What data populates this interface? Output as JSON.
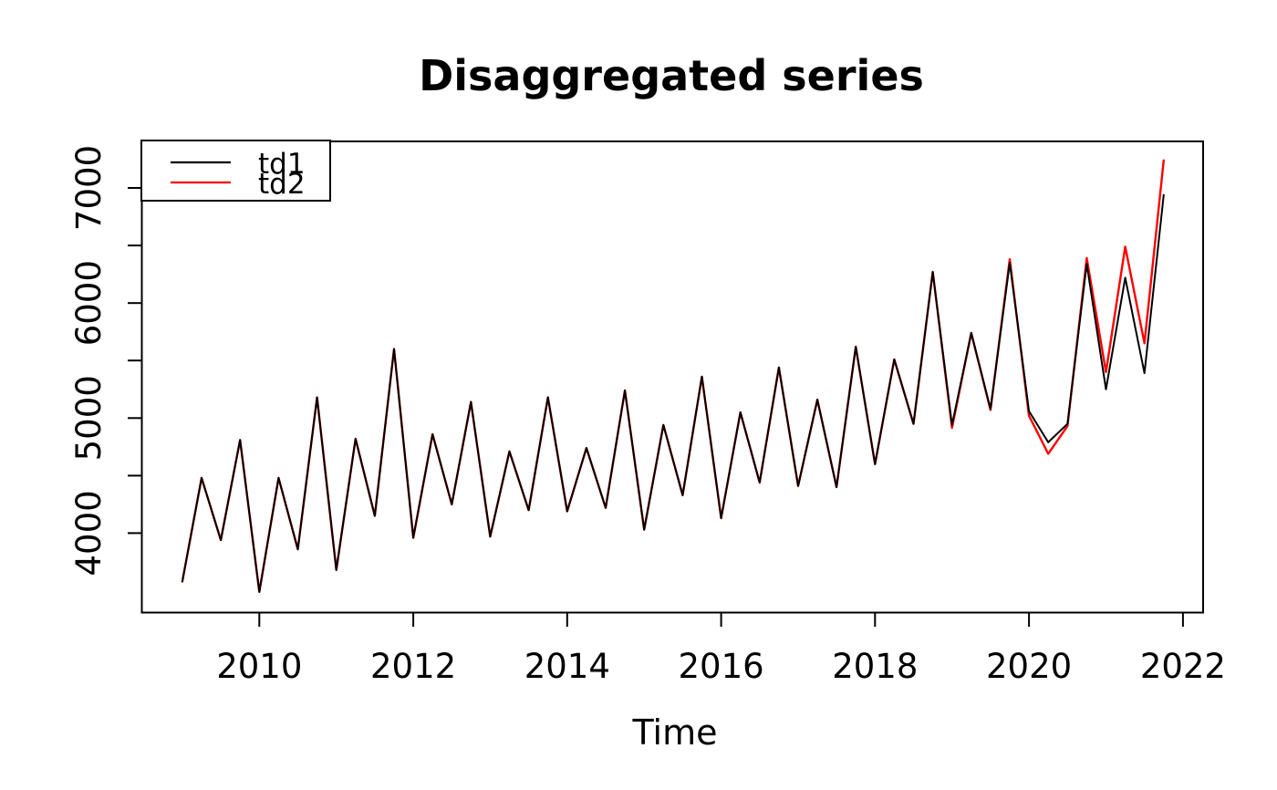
{
  "chart": {
    "title": "Disaggregated series",
    "x_axis_title": "Time"
  },
  "chart_data": {
    "type": "line",
    "title": "Disaggregated series",
    "xlabel": "Time",
    "ylabel": "",
    "x_start": 2009.0,
    "x_step": 0.25,
    "frequency": "quarterly",
    "x_ticks": [
      2010,
      2012,
      2014,
      2016,
      2018,
      2020,
      2022
    ],
    "y_ticks": [
      4000,
      4500,
      5000,
      5500,
      6000,
      6500,
      7000
    ],
    "y_tick_labels": [
      4000,
      5000,
      6000,
      7000
    ],
    "xlim": [
      2008.5,
      2022.25
    ],
    "ylim": [
      3340,
      7400
    ],
    "grid": false,
    "legend_position": "topleft",
    "background": "#ffffff",
    "axis_color": "#000000",
    "series": [
      {
        "name": "td1",
        "color": "#000000",
        "values": [
          3580,
          4480,
          3940,
          4810,
          3490,
          4480,
          3860,
          5180,
          3680,
          4820,
          4150,
          5600,
          3960,
          4860,
          4250,
          5140,
          3970,
          4710,
          4200,
          5180,
          4190,
          4740,
          4220,
          5240,
          4030,
          4940,
          4330,
          5360,
          4130,
          5050,
          4440,
          5440,
          4410,
          5160,
          4400,
          5620,
          4600,
          5510,
          4950,
          6270,
          4940,
          5740,
          5080,
          6350,
          5060,
          4790,
          4950,
          6340,
          5250,
          6220,
          5390,
          6940
        ]
      },
      {
        "name": "td2",
        "color": "#FF0000",
        "values": [
          3580,
          4480,
          3940,
          4810,
          3490,
          4480,
          3860,
          5180,
          3680,
          4820,
          4150,
          5600,
          3960,
          4860,
          4250,
          5140,
          3970,
          4710,
          4200,
          5180,
          4190,
          4740,
          4220,
          5240,
          4030,
          4940,
          4330,
          5360,
          4130,
          5050,
          4440,
          5440,
          4410,
          5160,
          4400,
          5620,
          4600,
          5510,
          4950,
          6270,
          4915,
          5740,
          5070,
          6380,
          5020,
          4690,
          4930,
          6390,
          5400,
          6490,
          5650,
          7240
        ]
      }
    ]
  }
}
